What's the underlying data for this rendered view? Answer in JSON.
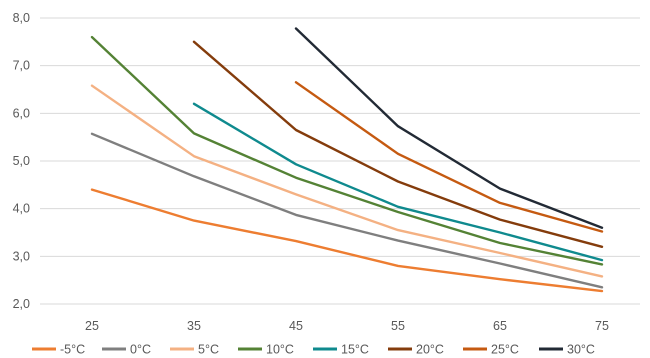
{
  "chart_data": {
    "type": "line",
    "title": "",
    "xlabel": "",
    "ylabel": "",
    "x_ticks": [
      "25",
      "35",
      "45",
      "55",
      "65",
      "75"
    ],
    "y_ticks": [
      "2,0",
      "3,0",
      "4,0",
      "5,0",
      "6,0",
      "7,0",
      "8,0"
    ],
    "xlim": [
      20,
      78
    ],
    "ylim": [
      2.0,
      8.0
    ],
    "grid": "horizontal",
    "legend_position": "bottom",
    "series": [
      {
        "name": "-5°C",
        "color": "#ed7d31",
        "x": [
          25,
          35,
          45,
          55,
          65,
          75
        ],
        "y": [
          4.4,
          3.75,
          3.32,
          2.8,
          2.52,
          2.27
        ]
      },
      {
        "name": "0°C",
        "color": "#7f7f7f",
        "x": [
          25,
          35,
          45,
          55,
          65,
          75
        ],
        "y": [
          5.57,
          4.68,
          3.87,
          3.33,
          2.85,
          2.35
        ]
      },
      {
        "name": "5°C",
        "color": "#f4b183",
        "x": [
          25,
          35,
          45,
          55,
          65,
          75
        ],
        "y": [
          6.58,
          5.1,
          4.3,
          3.55,
          3.07,
          2.58
        ]
      },
      {
        "name": "10°C",
        "color": "#548235",
        "x": [
          25,
          35,
          45,
          55,
          65,
          75
        ],
        "y": [
          7.6,
          5.58,
          4.65,
          3.93,
          3.28,
          2.83
        ]
      },
      {
        "name": "15°C",
        "color": "#0f8a8e",
        "x": [
          35,
          45,
          55,
          65,
          75
        ],
        "y": [
          6.2,
          4.93,
          4.04,
          3.5,
          2.92
        ]
      },
      {
        "name": "20°C",
        "color": "#843c0c",
        "x": [
          35,
          45,
          55,
          65,
          75
        ],
        "y": [
          7.5,
          5.65,
          4.57,
          3.77,
          3.2
        ]
      },
      {
        "name": "25°C",
        "color": "#c55a11",
        "x": [
          45,
          55,
          65,
          75
        ],
        "y": [
          6.65,
          5.15,
          4.12,
          3.52
        ]
      },
      {
        "name": "30°C",
        "color": "#222a35",
        "x": [
          45,
          55,
          65,
          75
        ],
        "y": [
          7.78,
          5.73,
          4.42,
          3.6
        ]
      }
    ]
  }
}
